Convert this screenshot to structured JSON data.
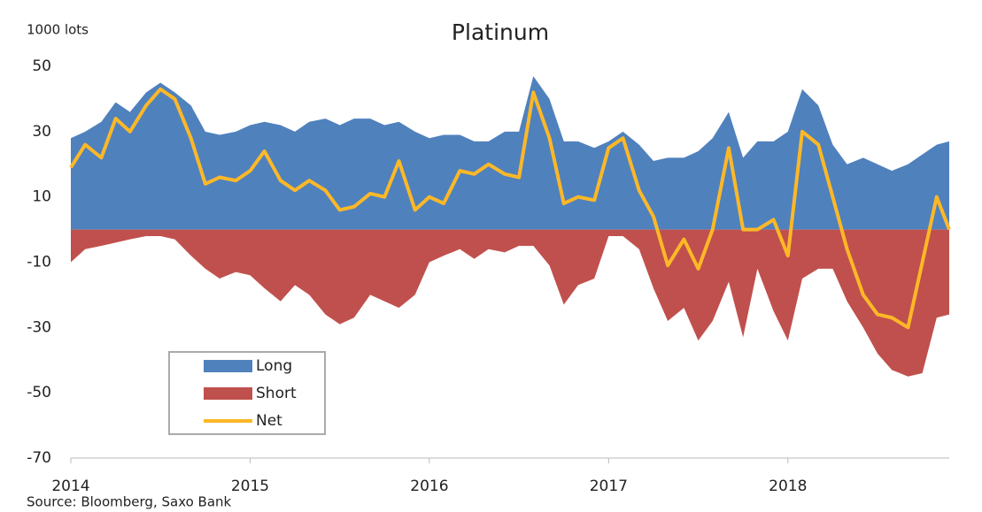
{
  "chart_data": {
    "type": "area",
    "title": "Platinum",
    "y_label": "1000 lots",
    "source": "Source: Bloomberg,  Saxo Bank",
    "x": [
      2014,
      2014.08,
      2014.17,
      2014.25,
      2014.33,
      2014.42,
      2014.5,
      2014.58,
      2014.67,
      2014.75,
      2014.83,
      2014.92,
      2015,
      2015.08,
      2015.17,
      2015.25,
      2015.33,
      2015.42,
      2015.5,
      2015.58,
      2015.67,
      2015.75,
      2015.83,
      2015.92,
      2016,
      2016.08,
      2016.17,
      2016.25,
      2016.33,
      2016.42,
      2016.5,
      2016.58,
      2016.67,
      2016.75,
      2016.83,
      2016.92,
      2017,
      2017.08,
      2017.17,
      2017.25,
      2017.33,
      2017.42,
      2017.5,
      2017.58,
      2017.67,
      2017.75,
      2017.83,
      2017.92,
      2018,
      2018.08,
      2018.17,
      2018.25,
      2018.33,
      2018.42,
      2018.5,
      2018.58,
      2018.67,
      2018.75,
      2018.83,
      2018.9
    ],
    "series": [
      {
        "name": "Long",
        "color": "#4f81bd",
        "kind": "area",
        "values": [
          28,
          30,
          33,
          39,
          36,
          42,
          45,
          42,
          38,
          30,
          29,
          30,
          32,
          33,
          32,
          30,
          33,
          34,
          32,
          34,
          34,
          32,
          33,
          30,
          28,
          29,
          29,
          27,
          27,
          30,
          30,
          47,
          40,
          27,
          27,
          25,
          27,
          30,
          26,
          21,
          22,
          22,
          24,
          28,
          36,
          22,
          27,
          27,
          30,
          43,
          38,
          26,
          20,
          22,
          20,
          18,
          20,
          23,
          26,
          27
        ]
      },
      {
        "name": "Short",
        "color": "#c0504d",
        "kind": "area",
        "values": [
          -10,
          -6,
          -5,
          -4,
          -3,
          -2,
          -2,
          -3,
          -8,
          -12,
          -15,
          -13,
          -14,
          -18,
          -22,
          -17,
          -20,
          -26,
          -29,
          -27,
          -20,
          -22,
          -24,
          -20,
          -10,
          -8,
          -6,
          -9,
          -6,
          -7,
          -5,
          -5,
          -11,
          -23,
          -17,
          -15,
          -2,
          -2,
          -6,
          -18,
          -28,
          -24,
          -34,
          -28,
          -16,
          -33,
          -12,
          -25,
          -34,
          -15,
          -12,
          -12,
          -22,
          -30,
          -38,
          -43,
          -45,
          -44,
          -27,
          -26
        ]
      },
      {
        "name": "Net",
        "color": "#fdb827",
        "kind": "line",
        "values": [
          19,
          26,
          22,
          34,
          30,
          38,
          43,
          40,
          28,
          14,
          16,
          15,
          18,
          24,
          15,
          12,
          15,
          12,
          6,
          7,
          11,
          10,
          21,
          6,
          10,
          8,
          18,
          17,
          20,
          17,
          16,
          42,
          28,
          8,
          10,
          9,
          25,
          28,
          12,
          4,
          -11,
          -3,
          -12,
          0,
          25,
          0,
          0,
          3,
          -8,
          30,
          26,
          10,
          -6,
          -20,
          -26,
          -27,
          -30,
          -10,
          10,
          0
        ]
      }
    ],
    "xlim": [
      2014,
      2018.9
    ],
    "xticks": [
      2014,
      2015,
      2016,
      2017,
      2018
    ],
    "ylim": [
      -70,
      50
    ],
    "yticks": [
      50,
      30,
      10,
      -10,
      -30,
      -50,
      -70
    ]
  }
}
